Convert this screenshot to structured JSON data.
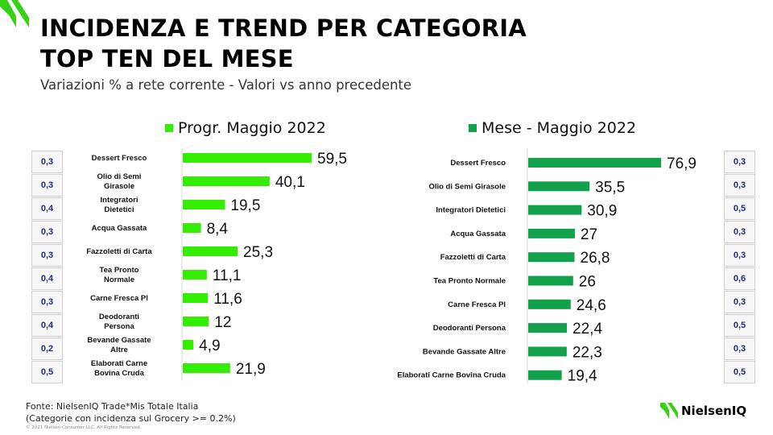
{
  "header": {
    "title_line1": "INCIDENZA E TREND PER CATEGORIA",
    "title_line2": "TOP TEN DEL MESE",
    "subtitle": "Variazioni % a rete corrente - Valori vs anno precedente"
  },
  "colors": {
    "left_bar": "#33ee00",
    "right_bar": "#12a14b",
    "incidence_text": "#1c2e7a",
    "brand_green": "#34d212"
  },
  "chart_data": [
    {
      "type": "bar",
      "orientation": "horizontal",
      "legend": "Progr. Maggio 2022",
      "categories": [
        "Dessert Fresco",
        "Olio di Semi Girasole",
        "Integratori Dietetici",
        "Acqua Gassata",
        "Fazzoletti di Carta",
        "Tea Pronto Normale",
        "Carne Fresca Pl",
        "Deodoranti Persona",
        "Bevande Gassate Altre",
        "Elaborati Carne Bovina Cruda"
      ],
      "category_lines": [
        [
          "Dessert Fresco"
        ],
        [
          "Olio di Semi",
          "Girasole"
        ],
        [
          "Integratori",
          "Dietetici"
        ],
        [
          "Acqua Gassata"
        ],
        [
          "Fazzoletti di Carta"
        ],
        [
          "Tea Pronto",
          "Normale"
        ],
        [
          "Carne Fresca Pl"
        ],
        [
          "Deodoranti",
          "Persona"
        ],
        [
          "Bevande Gassate",
          "Altre"
        ],
        [
          "Elaborati Carne",
          "Bovina Cruda"
        ]
      ],
      "values": [
        59.5,
        40.1,
        19.5,
        8.4,
        25.3,
        11.1,
        11.6,
        12,
        4.9,
        21.9
      ],
      "value_labels": [
        "59,5",
        "40,1",
        "19,5",
        "8,4",
        "25,3",
        "11,1",
        "11,6",
        "12",
        "4,9",
        "21,9"
      ],
      "incidence": [
        "0,3",
        "0,3",
        "0,4",
        "0,3",
        "0,3",
        "0,4",
        "0,3",
        "0,4",
        "0,2",
        "0,5"
      ]
    },
    {
      "type": "bar",
      "orientation": "horizontal",
      "legend": "Mese - Maggio 2022",
      "categories": [
        "Dessert Fresco",
        "Olio di Semi Girasole",
        "Integratori Dietetici",
        "Acqua Gassata",
        "Fazzoletti di Carta",
        "Tea Pronto Normale",
        "Carne Fresca Pl",
        "Deodoranti Persona",
        "Bevande Gassate Altre",
        "Elaborati Carne Bovina Cruda"
      ],
      "values": [
        76.9,
        35.5,
        30.9,
        27,
        26.8,
        26,
        24.6,
        22.4,
        22.3,
        19.4
      ],
      "value_labels": [
        "76,9",
        "35,5",
        "30,9",
        "27",
        "26,8",
        "26",
        "24,6",
        "22,4",
        "22,3",
        "19,4"
      ],
      "incidence": [
        "0,3",
        "0,3",
        "0,5",
        "0,3",
        "0,3",
        "0,6",
        "0,3",
        "0,5",
        "0,3",
        "0,5"
      ]
    }
  ],
  "footer": {
    "source": "Fonte: NielsenIQ Trade*Mis  Totale Italia",
    "note": "(Categorie con incidenza sul Grocery >= 0.2%)",
    "copyright": "© 2021 Nielsen Consumer LLC. All Rights Reserved."
  },
  "logo": {
    "text": "NielsenIQ"
  }
}
